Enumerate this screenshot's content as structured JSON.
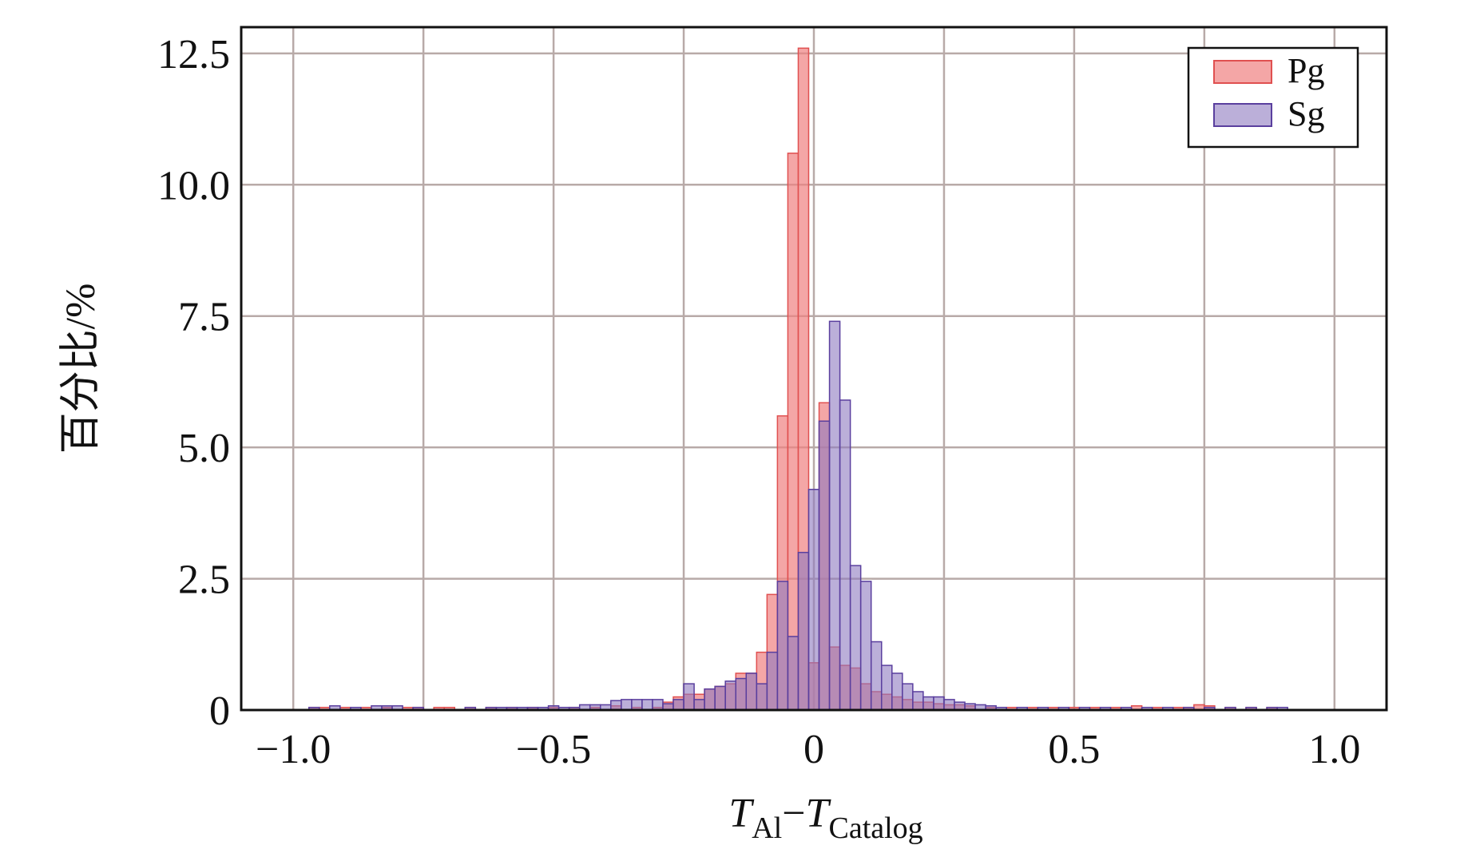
{
  "chart_data": {
    "type": "histogram",
    "title": "",
    "xlabel": {
      "main": "T",
      "sub1": "Al",
      "dash": "−",
      "main2": "T",
      "sub2": "Catalog"
    },
    "ylabel": "百分比/%",
    "xlim": [
      -1.1,
      1.1
    ],
    "ylim": [
      0,
      13.0
    ],
    "xticks": [
      -1.0,
      -0.5,
      0,
      0.5,
      1.0
    ],
    "xtick_labels": [
      "−1.0",
      "−0.5",
      "0",
      "0.5",
      "1.0"
    ],
    "yticks": [
      0,
      2.5,
      5.0,
      7.5,
      10.0,
      12.5
    ],
    "ytick_labels": [
      "0",
      "2.5",
      "5.0",
      "7.5",
      "10.0",
      "12.5"
    ],
    "grid": true,
    "legend_position": "top-right",
    "bin_width": 0.02,
    "series": [
      {
        "name": "Pg",
        "color": "#f08080",
        "edge": "#e05050",
        "opacity": 0.7,
        "bins": [
          [
            -0.96,
            0.05
          ],
          [
            -0.94,
            0.05
          ],
          [
            -0.9,
            0.05
          ],
          [
            -0.86,
            0.05
          ],
          [
            -0.82,
            0.05
          ],
          [
            -0.78,
            0.05
          ],
          [
            -0.76,
            0.05
          ],
          [
            -0.72,
            0.05
          ],
          [
            -0.7,
            0.05
          ],
          [
            -0.66,
            0.05
          ],
          [
            -0.62,
            0.05
          ],
          [
            -0.58,
            0.05
          ],
          [
            -0.54,
            0.05
          ],
          [
            -0.5,
            0.05
          ],
          [
            -0.46,
            0.05
          ],
          [
            -0.42,
            0.05
          ],
          [
            -0.38,
            0.08
          ],
          [
            -0.34,
            0.05
          ],
          [
            -0.3,
            0.05
          ],
          [
            -0.28,
            0.15
          ],
          [
            -0.26,
            0.25
          ],
          [
            -0.24,
            0.3
          ],
          [
            -0.22,
            0.3
          ],
          [
            -0.2,
            0.4
          ],
          [
            -0.18,
            0.45
          ],
          [
            -0.16,
            0.5
          ],
          [
            -0.14,
            0.7
          ],
          [
            -0.12,
            0.7
          ],
          [
            -0.1,
            1.1
          ],
          [
            -0.08,
            2.2
          ],
          [
            -0.06,
            5.6
          ],
          [
            -0.04,
            10.6
          ],
          [
            -0.02,
            12.6
          ],
          [
            0.0,
            0.9
          ],
          [
            0.02,
            5.85
          ],
          [
            0.04,
            1.2
          ],
          [
            0.06,
            0.85
          ],
          [
            0.08,
            0.8
          ],
          [
            0.1,
            0.5
          ],
          [
            0.12,
            0.35
          ],
          [
            0.14,
            0.3
          ],
          [
            0.16,
            0.25
          ],
          [
            0.18,
            0.2
          ],
          [
            0.2,
            0.15
          ],
          [
            0.22,
            0.15
          ],
          [
            0.24,
            0.12
          ],
          [
            0.26,
            0.1
          ],
          [
            0.28,
            0.1
          ],
          [
            0.3,
            0.08
          ],
          [
            0.34,
            0.05
          ],
          [
            0.38,
            0.05
          ],
          [
            0.42,
            0.05
          ],
          [
            0.46,
            0.05
          ],
          [
            0.5,
            0.05
          ],
          [
            0.54,
            0.05
          ],
          [
            0.58,
            0.05
          ],
          [
            0.62,
            0.08
          ],
          [
            0.66,
            0.05
          ],
          [
            0.7,
            0.05
          ],
          [
            0.72,
            0.05
          ],
          [
            0.74,
            0.1
          ],
          [
            0.76,
            0.08
          ],
          [
            0.8,
            0.05
          ],
          [
            0.84,
            0.05
          ],
          [
            0.88,
            0.05
          ]
        ]
      },
      {
        "name": "Sg",
        "color": "#8e79bf",
        "edge": "#5a3f9e",
        "opacity": 0.6,
        "bins": [
          [
            -0.96,
            0.05
          ],
          [
            -0.92,
            0.08
          ],
          [
            -0.88,
            0.05
          ],
          [
            -0.84,
            0.08
          ],
          [
            -0.82,
            0.08
          ],
          [
            -0.8,
            0.08
          ],
          [
            -0.76,
            0.05
          ],
          [
            -0.66,
            0.05
          ],
          [
            -0.62,
            0.05
          ],
          [
            -0.6,
            0.05
          ],
          [
            -0.58,
            0.05
          ],
          [
            -0.56,
            0.05
          ],
          [
            -0.54,
            0.05
          ],
          [
            -0.52,
            0.05
          ],
          [
            -0.5,
            0.08
          ],
          [
            -0.48,
            0.05
          ],
          [
            -0.46,
            0.05
          ],
          [
            -0.44,
            0.1
          ],
          [
            -0.42,
            0.1
          ],
          [
            -0.4,
            0.1
          ],
          [
            -0.38,
            0.18
          ],
          [
            -0.36,
            0.2
          ],
          [
            -0.34,
            0.2
          ],
          [
            -0.32,
            0.2
          ],
          [
            -0.3,
            0.2
          ],
          [
            -0.28,
            0.12
          ],
          [
            -0.26,
            0.2
          ],
          [
            -0.24,
            0.5
          ],
          [
            -0.22,
            0.2
          ],
          [
            -0.2,
            0.4
          ],
          [
            -0.18,
            0.45
          ],
          [
            -0.16,
            0.55
          ],
          [
            -0.14,
            0.6
          ],
          [
            -0.12,
            0.7
          ],
          [
            -0.1,
            0.5
          ],
          [
            -0.08,
            1.1
          ],
          [
            -0.06,
            2.45
          ],
          [
            -0.04,
            1.4
          ],
          [
            -0.02,
            3.0
          ],
          [
            0.0,
            4.2
          ],
          [
            0.02,
            5.5
          ],
          [
            0.04,
            7.4
          ],
          [
            0.06,
            5.9
          ],
          [
            0.08,
            2.75
          ],
          [
            0.1,
            2.45
          ],
          [
            0.12,
            1.3
          ],
          [
            0.14,
            0.85
          ],
          [
            0.16,
            0.7
          ],
          [
            0.18,
            0.5
          ],
          [
            0.2,
            0.35
          ],
          [
            0.22,
            0.25
          ],
          [
            0.24,
            0.25
          ],
          [
            0.26,
            0.2
          ],
          [
            0.28,
            0.15
          ],
          [
            0.3,
            0.12
          ],
          [
            0.32,
            0.1
          ],
          [
            0.34,
            0.08
          ],
          [
            0.36,
            0.05
          ],
          [
            0.4,
            0.05
          ],
          [
            0.44,
            0.05
          ],
          [
            0.48,
            0.05
          ],
          [
            0.52,
            0.05
          ],
          [
            0.56,
            0.05
          ],
          [
            0.6,
            0.05
          ],
          [
            0.64,
            0.05
          ],
          [
            0.68,
            0.05
          ],
          [
            0.72,
            0.05
          ],
          [
            0.76,
            0.05
          ],
          [
            0.8,
            0.05
          ],
          [
            0.84,
            0.05
          ],
          [
            0.88,
            0.05
          ],
          [
            0.9,
            0.05
          ]
        ]
      }
    ]
  }
}
